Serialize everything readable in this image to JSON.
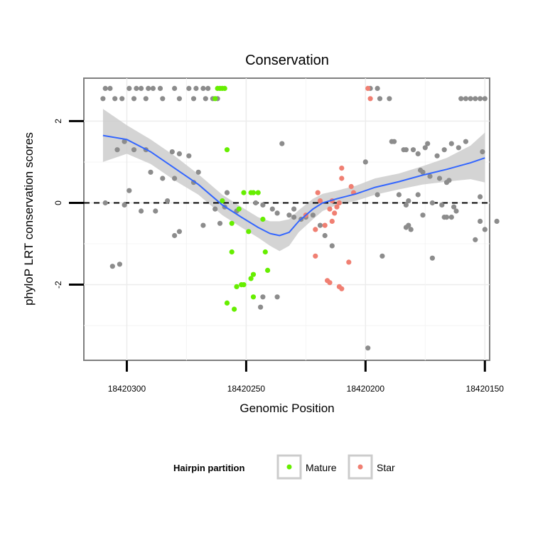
{
  "chart_data": {
    "type": "scatter",
    "title": "Conservation",
    "xlabel": "Genomic Position",
    "ylabel": "phyloP LRT conservation scores",
    "x_reversed": true,
    "xlim": [
      18420318,
      18420148
    ],
    "ylim": [
      -3.85,
      3.05
    ],
    "x_ticks": [
      18420300,
      18420250,
      18420200,
      18420150
    ],
    "x_tick_labels": [
      "18420300",
      "18420250",
      "18420200",
      "18420150"
    ],
    "y_ticks": [
      2,
      0,
      -2
    ],
    "y_tick_labels": [
      "2",
      "0",
      "-2"
    ],
    "grid": true,
    "reference_line": {
      "y": 0,
      "style": "dashed"
    },
    "legend": {
      "title": "Hairpin partition",
      "position": "bottom",
      "entries": [
        {
          "label": "Mature",
          "color": "#66ee00"
        },
        {
          "label": "Star",
          "color": "#f07f72"
        }
      ]
    },
    "colors": {
      "Other": "#8c8c8c",
      "Mature": "#66ee00",
      "Star": "#f07f72",
      "smooth": "#3366ff",
      "ribbon": "#cccccc"
    },
    "series": [
      {
        "name": "Other",
        "points": [
          [
            18420309,
            2.8
          ],
          [
            18420307,
            2.8
          ],
          [
            18420299,
            2.8
          ],
          [
            18420296,
            2.8
          ],
          [
            18420294,
            2.8
          ],
          [
            18420291,
            2.8
          ],
          [
            18420289,
            2.8
          ],
          [
            18420286,
            2.8
          ],
          [
            18420280,
            2.8
          ],
          [
            18420274,
            2.8
          ],
          [
            18420271,
            2.8
          ],
          [
            18420268,
            2.8
          ],
          [
            18420266,
            2.8
          ],
          [
            18420198,
            2.8
          ],
          [
            18420195,
            2.8
          ],
          [
            18420310,
            2.55
          ],
          [
            18420305,
            2.55
          ],
          [
            18420302,
            2.55
          ],
          [
            18420297,
            2.55
          ],
          [
            18420292,
            2.55
          ],
          [
            18420285,
            2.55
          ],
          [
            18420278,
            2.55
          ],
          [
            18420272,
            2.55
          ],
          [
            18420267,
            2.55
          ],
          [
            18420264,
            2.55
          ],
          [
            18420262,
            2.55
          ],
          [
            18420194,
            2.55
          ],
          [
            18420190,
            2.55
          ],
          [
            18420160,
            2.55
          ],
          [
            18420158,
            2.55
          ],
          [
            18420156,
            2.55
          ],
          [
            18420154,
            2.55
          ],
          [
            18420152,
            2.55
          ],
          [
            18420150,
            2.55
          ],
          [
            18420304,
            1.3
          ],
          [
            18420301,
            1.5
          ],
          [
            18420297,
            1.3
          ],
          [
            18420292,
            1.3
          ],
          [
            18420281,
            1.25
          ],
          [
            18420278,
            1.2
          ],
          [
            18420274,
            1.15
          ],
          [
            18420235,
            1.45
          ],
          [
            18420200,
            1.0
          ],
          [
            18420189,
            1.5
          ],
          [
            18420188,
            1.5
          ],
          [
            18420184,
            1.3
          ],
          [
            18420183,
            1.3
          ],
          [
            18420180,
            1.3
          ],
          [
            18420178,
            1.2
          ],
          [
            18420175,
            1.35
          ],
          [
            18420174,
            1.45
          ],
          [
            18420170,
            1.15
          ],
          [
            18420167,
            1.3
          ],
          [
            18420164,
            1.45
          ],
          [
            18420161,
            1.35
          ],
          [
            18420158,
            1.5
          ],
          [
            18420151,
            1.25
          ],
          [
            18420290,
            0.75
          ],
          [
            18420285,
            0.6
          ],
          [
            18420280,
            0.6
          ],
          [
            18420272,
            0.5
          ],
          [
            18420270,
            0.75
          ],
          [
            18420177,
            0.8
          ],
          [
            18420176,
            0.75
          ],
          [
            18420173,
            0.65
          ],
          [
            18420169,
            0.6
          ],
          [
            18420166,
            0.5
          ],
          [
            18420165,
            0.55
          ],
          [
            18420299,
            0.3
          ],
          [
            18420258,
            0.25
          ],
          [
            18420195,
            0.2
          ],
          [
            18420186,
            0.2
          ],
          [
            18420178,
            0.2
          ],
          [
            18420182,
            0.05
          ],
          [
            18420183,
            -0.05
          ],
          [
            18420172,
            0.0
          ],
          [
            18420168,
            -0.05
          ],
          [
            18420163,
            -0.1
          ],
          [
            18420152,
            0.15
          ],
          [
            18420309,
            0.0
          ],
          [
            18420301,
            -0.05
          ],
          [
            18420283,
            0.05
          ],
          [
            18420263,
            -0.15
          ],
          [
            18420259,
            -0.1
          ],
          [
            18420254,
            -0.2
          ],
          [
            18420246,
            0.0
          ],
          [
            18420243,
            -0.05
          ],
          [
            18420239,
            -0.15
          ],
          [
            18420237,
            -0.25
          ],
          [
            18420230,
            -0.15
          ],
          [
            18420294,
            -0.2
          ],
          [
            18420288,
            -0.2
          ],
          [
            18420268,
            -0.55
          ],
          [
            18420280,
            -0.8
          ],
          [
            18420278,
            -0.7
          ],
          [
            18420261,
            -0.5
          ],
          [
            18420232,
            -0.3
          ],
          [
            18420230,
            -0.35
          ],
          [
            18420227,
            -0.4
          ],
          [
            18420225,
            -0.35
          ],
          [
            18420222,
            -0.3
          ],
          [
            18420219,
            -0.55
          ],
          [
            18420217,
            -0.8
          ],
          [
            18420214,
            -1.05
          ],
          [
            18420193,
            -1.3
          ],
          [
            18420183,
            -0.6
          ],
          [
            18420182,
            -0.55
          ],
          [
            18420181,
            -0.65
          ],
          [
            18420176,
            -0.3
          ],
          [
            18420167,
            -0.35
          ],
          [
            18420166,
            -0.35
          ],
          [
            18420164,
            -0.35
          ],
          [
            18420162,
            -0.2
          ],
          [
            18420154,
            -0.9
          ],
          [
            18420152,
            -0.45
          ],
          [
            18420150,
            -0.65
          ],
          [
            18420145,
            -0.45
          ],
          [
            18420306,
            -1.55
          ],
          [
            18420303,
            -1.5
          ],
          [
            18420172,
            -1.35
          ],
          [
            18420244,
            -2.55
          ],
          [
            18420243,
            -2.3
          ],
          [
            18420237,
            -2.3
          ],
          [
            18420199,
            -3.55
          ]
        ]
      },
      {
        "name": "Mature",
        "points": [
          [
            18420262,
            2.8
          ],
          [
            18420261,
            2.8
          ],
          [
            18420260,
            2.8
          ],
          [
            18420259,
            2.8
          ],
          [
            18420263,
            2.55
          ],
          [
            18420258,
            1.3
          ],
          [
            18420251,
            0.25
          ],
          [
            18420248,
            0.25
          ],
          [
            18420247,
            0.25
          ],
          [
            18420245,
            0.25
          ],
          [
            18420260,
            0.05
          ],
          [
            18420253,
            -0.15
          ],
          [
            18420256,
            -0.5
          ],
          [
            18420249,
            -0.7
          ],
          [
            18420243,
            -0.4
          ],
          [
            18420256,
            -1.2
          ],
          [
            18420242,
            -1.2
          ],
          [
            18420241,
            -1.65
          ],
          [
            18420247,
            -1.75
          ],
          [
            18420248,
            -1.85
          ],
          [
            18420251,
            -2.0
          ],
          [
            18420252,
            -2.0
          ],
          [
            18420254,
            -2.05
          ],
          [
            18420247,
            -2.3
          ],
          [
            18420258,
            -2.45
          ],
          [
            18420255,
            -2.6
          ]
        ]
      },
      {
        "name": "Star",
        "points": [
          [
            18420199,
            2.8
          ],
          [
            18420198,
            2.55
          ],
          [
            18420210,
            0.85
          ],
          [
            18420210,
            0.6
          ],
          [
            18420206,
            0.4
          ],
          [
            18420205,
            0.25
          ],
          [
            18420220,
            0.25
          ],
          [
            18420219,
            0.05
          ],
          [
            18420214,
            0.05
          ],
          [
            18420211,
            0.0
          ],
          [
            18420225,
            -0.3
          ],
          [
            18420212,
            -0.1
          ],
          [
            18420215,
            -0.15
          ],
          [
            18420213,
            -0.25
          ],
          [
            18420214,
            -0.45
          ],
          [
            18420217,
            -0.55
          ],
          [
            18420221,
            -0.65
          ],
          [
            18420221,
            -1.3
          ],
          [
            18420207,
            -1.45
          ],
          [
            18420216,
            -1.9
          ],
          [
            18420215,
            -1.95
          ],
          [
            18420211,
            -2.05
          ],
          [
            18420210,
            -2.1
          ]
        ]
      }
    ],
    "smooth": {
      "x": [
        18420310,
        18420300,
        18420290,
        18420280,
        18420270,
        18420260,
        18420252,
        18420245,
        18420240,
        18420236,
        18420232,
        18420228,
        18420222,
        18420218,
        18420212,
        18420204,
        18420196,
        18420186,
        18420176,
        18420166,
        18420156,
        18420150
      ],
      "y": [
        1.65,
        1.55,
        1.25,
        0.85,
        0.45,
        -0.05,
        -0.35,
        -0.6,
        -0.75,
        -0.8,
        -0.72,
        -0.45,
        -0.15,
        0.0,
        0.1,
        0.22,
        0.38,
        0.52,
        0.68,
        0.82,
        0.98,
        1.1
      ],
      "lower": [
        1.0,
        1.2,
        0.95,
        0.55,
        0.2,
        -0.3,
        -0.6,
        -0.85,
        -1.05,
        -1.18,
        -1.05,
        -0.72,
        -0.4,
        -0.2,
        -0.05,
        0.05,
        0.2,
        0.33,
        0.45,
        0.52,
        0.58,
        0.5
      ],
      "upper": [
        2.3,
        1.9,
        1.55,
        1.15,
        0.7,
        0.2,
        -0.1,
        -0.35,
        -0.45,
        -0.45,
        -0.4,
        -0.18,
        0.1,
        0.22,
        0.3,
        0.42,
        0.6,
        0.72,
        0.9,
        1.1,
        1.4,
        1.72
      ]
    }
  }
}
